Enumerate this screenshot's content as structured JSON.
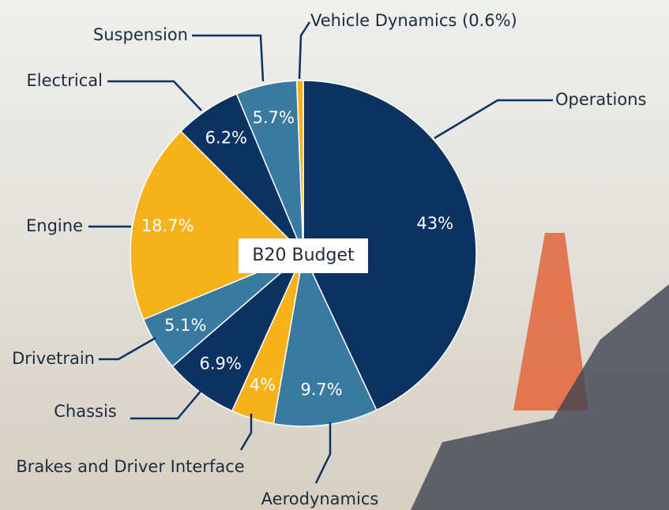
{
  "chart_data": {
    "type": "pie",
    "title": "B20 Budget",
    "categories": [
      "Operations",
      "Aerodynamics",
      "Brakes and Driver Interface",
      "Chassis",
      "Drivetrain",
      "Engine",
      "Electrical",
      "Suspension",
      "Vehicle  Dynamics (0.6%)"
    ],
    "values": [
      43,
      9.7,
      4,
      6.9,
      5.1,
      18.7,
      6.2,
      5.7,
      0.6
    ],
    "value_labels": [
      "43%",
      "9.7%",
      "4%",
      "6.9%",
      "5.1%",
      "18.7%",
      "6.2%",
      "5.7%",
      null
    ],
    "colors": [
      "#0b3260",
      "#3a7aa0",
      "#f6b21a",
      "#0b3260",
      "#3a7aa0",
      "#f6b21a",
      "#0b3260",
      "#3a7aa0",
      "#f6b21a"
    ]
  }
}
